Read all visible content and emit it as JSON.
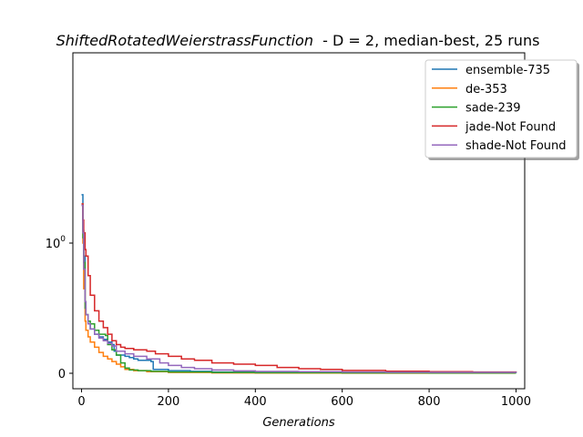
{
  "chart_data": {
    "type": "line",
    "title_italic": "ShiftedRotatedWeierstrassFunction",
    "title_rest": "  - D = 2, median-best, 25 runs",
    "xlabel": "Generations",
    "ylabel": "",
    "xlim": [
      -20,
      1020
    ],
    "x_ticks": [
      0,
      200,
      400,
      600,
      800,
      1000
    ],
    "y_scale": "symlog",
    "y_ticks": [
      {
        "value": 0,
        "label": "0"
      },
      {
        "value": 1,
        "label_base": "10",
        "label_exp": "0"
      }
    ],
    "grid": false,
    "legend_position": "top-right",
    "series": [
      {
        "name": "ensemble-735",
        "color": "#1f77b4",
        "points": [
          [
            0,
            2.35
          ],
          [
            3,
            1.25
          ],
          [
            5,
            0.9
          ],
          [
            8,
            0.55
          ],
          [
            10,
            0.45
          ],
          [
            15,
            0.38
          ],
          [
            20,
            0.34
          ],
          [
            30,
            0.3
          ],
          [
            40,
            0.28
          ],
          [
            50,
            0.26
          ],
          [
            60,
            0.24
          ],
          [
            70,
            0.22
          ],
          [
            75,
            0.17
          ],
          [
            80,
            0.14
          ],
          [
            100,
            0.13
          ],
          [
            110,
            0.12
          ],
          [
            120,
            0.11
          ],
          [
            130,
            0.1
          ],
          [
            140,
            0.1
          ],
          [
            150,
            0.1
          ],
          [
            160,
            0.09
          ],
          [
            165,
            0.03
          ],
          [
            200,
            0.02
          ],
          [
            250,
            0.015
          ],
          [
            300,
            0.01
          ],
          [
            400,
            0.007
          ],
          [
            600,
            0.004
          ],
          [
            800,
            0.003
          ],
          [
            1000,
            0.002
          ]
        ]
      },
      {
        "name": "de-353",
        "color": "#ff7f0e",
        "points": [
          [
            0,
            2.0
          ],
          [
            3,
            1.0
          ],
          [
            5,
            0.65
          ],
          [
            8,
            0.4
          ],
          [
            10,
            0.33
          ],
          [
            15,
            0.28
          ],
          [
            20,
            0.24
          ],
          [
            30,
            0.2
          ],
          [
            40,
            0.16
          ],
          [
            50,
            0.13
          ],
          [
            60,
            0.11
          ],
          [
            70,
            0.09
          ],
          [
            80,
            0.07
          ],
          [
            90,
            0.05
          ],
          [
            100,
            0.03
          ],
          [
            120,
            0.02
          ],
          [
            150,
            0.012
          ],
          [
            200,
            0.006
          ],
          [
            300,
            0.003
          ],
          [
            400,
            0.002
          ],
          [
            600,
            0.001
          ],
          [
            800,
            0.001
          ],
          [
            1000,
            0.001
          ]
        ]
      },
      {
        "name": "sade-239",
        "color": "#2ca02c",
        "points": [
          [
            0,
            1.95
          ],
          [
            3,
            1.1
          ],
          [
            5,
            0.85
          ],
          [
            8,
            0.5
          ],
          [
            10,
            0.45
          ],
          [
            15,
            0.4
          ],
          [
            20,
            0.38
          ],
          [
            30,
            0.33
          ],
          [
            40,
            0.3
          ],
          [
            50,
            0.3
          ],
          [
            55,
            0.29
          ],
          [
            60,
            0.22
          ],
          [
            70,
            0.18
          ],
          [
            80,
            0.14
          ],
          [
            90,
            0.08
          ],
          [
            100,
            0.04
          ],
          [
            110,
            0.025
          ],
          [
            130,
            0.02
          ],
          [
            160,
            0.015
          ],
          [
            200,
            0.01
          ],
          [
            300,
            0.006
          ],
          [
            400,
            0.004
          ],
          [
            600,
            0.003
          ],
          [
            800,
            0.002
          ],
          [
            1000,
            0.002
          ]
        ]
      },
      {
        "name": "jade-Not Found",
        "color": "#d62728",
        "points": [
          [
            0,
            2.0
          ],
          [
            3,
            1.5
          ],
          [
            5,
            1.2
          ],
          [
            8,
            0.95
          ],
          [
            10,
            0.9
          ],
          [
            15,
            0.75
          ],
          [
            20,
            0.6
          ],
          [
            30,
            0.48
          ],
          [
            40,
            0.4
          ],
          [
            50,
            0.35
          ],
          [
            60,
            0.3
          ],
          [
            70,
            0.25
          ],
          [
            80,
            0.22
          ],
          [
            90,
            0.2
          ],
          [
            100,
            0.19
          ],
          [
            120,
            0.18
          ],
          [
            150,
            0.17
          ],
          [
            170,
            0.15
          ],
          [
            200,
            0.13
          ],
          [
            230,
            0.11
          ],
          [
            260,
            0.1
          ],
          [
            300,
            0.08
          ],
          [
            350,
            0.07
          ],
          [
            400,
            0.06
          ],
          [
            450,
            0.045
          ],
          [
            500,
            0.035
          ],
          [
            550,
            0.03
          ],
          [
            600,
            0.022
          ],
          [
            700,
            0.016
          ],
          [
            800,
            0.012
          ],
          [
            900,
            0.01
          ],
          [
            1000,
            0.009
          ]
        ]
      },
      {
        "name": "shade-Not Found",
        "color": "#9467bd",
        "points": [
          [
            0,
            1.95
          ],
          [
            3,
            1.2
          ],
          [
            5,
            0.8
          ],
          [
            8,
            0.55
          ],
          [
            10,
            0.45
          ],
          [
            15,
            0.38
          ],
          [
            20,
            0.34
          ],
          [
            30,
            0.3
          ],
          [
            40,
            0.27
          ],
          [
            50,
            0.25
          ],
          [
            60,
            0.23
          ],
          [
            70,
            0.21
          ],
          [
            80,
            0.17
          ],
          [
            100,
            0.15
          ],
          [
            120,
            0.13
          ],
          [
            150,
            0.11
          ],
          [
            180,
            0.08
          ],
          [
            200,
            0.06
          ],
          [
            230,
            0.045
          ],
          [
            260,
            0.035
          ],
          [
            300,
            0.025
          ],
          [
            350,
            0.018
          ],
          [
            400,
            0.014
          ],
          [
            500,
            0.012
          ],
          [
            600,
            0.01
          ],
          [
            700,
            0.008
          ],
          [
            800,
            0.007
          ],
          [
            1000,
            0.006
          ]
        ]
      }
    ]
  }
}
